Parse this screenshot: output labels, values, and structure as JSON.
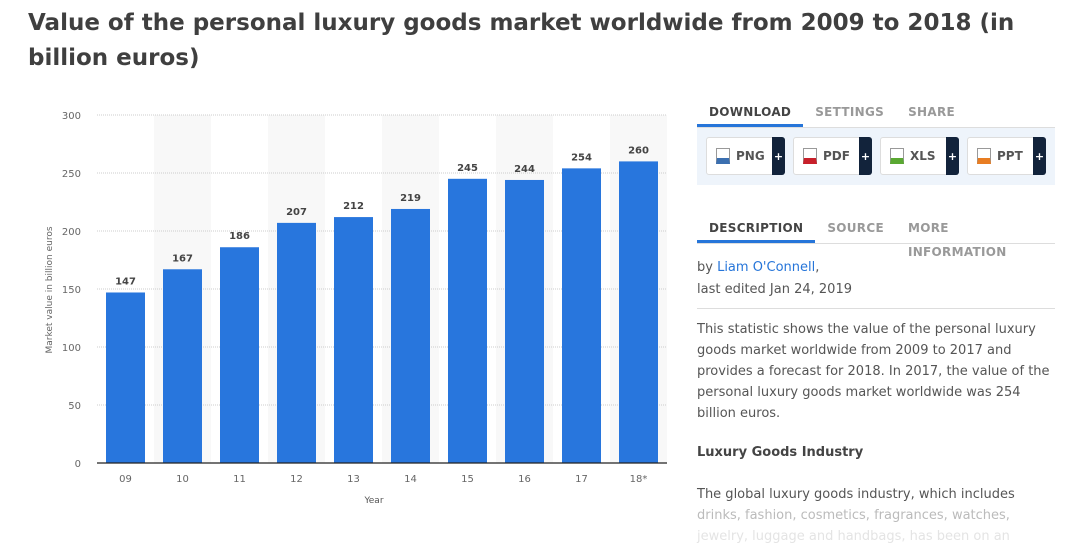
{
  "title": "Value of the personal luxury goods market worldwide from 2009 to 2018 (in billion euros)",
  "chart_data": {
    "type": "bar",
    "categories": [
      "09",
      "10",
      "11",
      "12",
      "13",
      "14",
      "15",
      "16",
      "17",
      "18*"
    ],
    "values": [
      147,
      167,
      186,
      207,
      212,
      219,
      245,
      244,
      254,
      260
    ],
    "xlabel": "Year",
    "ylabel": "Market value in billion euros",
    "ylim": [
      0,
      300
    ],
    "yticks": [
      0,
      50,
      100,
      150,
      200,
      250,
      300
    ],
    "grid": true,
    "bar_color": "#2876dd",
    "data_labels": true
  },
  "panel": {
    "tabs": [
      "DOWNLOAD",
      "SETTINGS",
      "SHARE"
    ],
    "downloads": [
      {
        "label": "PNG",
        "icon": "png-file-icon",
        "color": "#3b6fb0"
      },
      {
        "label": "PDF",
        "icon": "pdf-file-icon",
        "color": "#c8202a"
      },
      {
        "label": "XLS",
        "icon": "xls-file-icon",
        "color": "#5aa832"
      },
      {
        "label": "PPT",
        "icon": "ppt-file-icon",
        "color": "#e87d22"
      }
    ],
    "plus": "+",
    "info_tabs": [
      "DESCRIPTION",
      "SOURCE",
      "MORE INFORMATION"
    ],
    "by": "by ",
    "author": "Liam O'Connell",
    "comma": ",",
    "edited": "last edited Jan 24, 2019",
    "description": "This statistic shows the value of the personal luxury goods market worldwide from 2009 to 2017 and provides a forecast for 2018. In 2017, the value of the personal luxury goods market worldwide was 254 billion euros.",
    "heading": "Luxury Goods Industry",
    "body1": "The global luxury goods industry, which includes",
    "body2": "drinks, fashion, cosmetics, fragrances, watches,",
    "body3": "jewelry, luggage and handbags, has been on an"
  }
}
